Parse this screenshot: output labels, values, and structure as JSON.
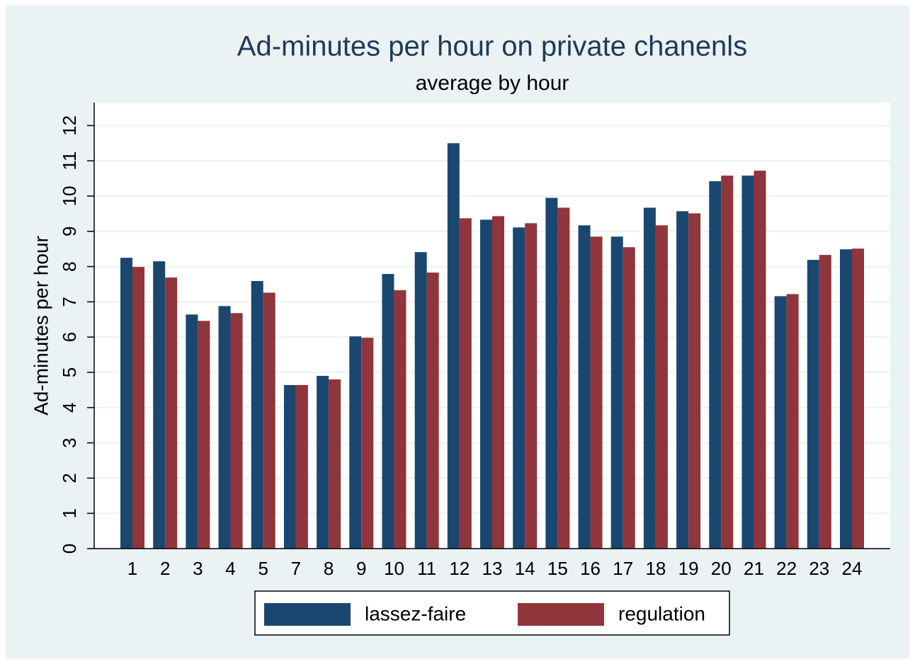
{
  "chart_data": {
    "type": "bar",
    "title": "Ad-minutes per hour on private chanenls",
    "subtitle": "average by hour",
    "y_label": "Ad-minutes per hour",
    "categories": [
      "1",
      "2",
      "3",
      "4",
      "5",
      "7",
      "8",
      "9",
      "10",
      "11",
      "12",
      "13",
      "14",
      "15",
      "16",
      "17",
      "18",
      "19",
      "20",
      "21",
      "22",
      "23",
      "24"
    ],
    "series": [
      {
        "name": "lassez-faire",
        "color": "#1a476f",
        "values": [
          8.25,
          8.15,
          6.64,
          6.88,
          7.59,
          4.64,
          4.9,
          6.02,
          7.79,
          8.41,
          11.5,
          9.33,
          9.11,
          9.95,
          9.17,
          8.85,
          9.67,
          9.57,
          10.42,
          10.58,
          7.16,
          8.19,
          8.49
        ]
      },
      {
        "name": "regulation",
        "color": "#90353b",
        "values": [
          7.99,
          7.69,
          6.46,
          6.68,
          7.26,
          4.64,
          4.8,
          5.98,
          7.33,
          7.83,
          9.37,
          9.43,
          9.23,
          9.67,
          8.85,
          8.55,
          9.17,
          9.51,
          10.58,
          10.72,
          7.22,
          8.33,
          8.51
        ]
      }
    ],
    "ylim": [
      0,
      12.65
    ],
    "yticks": [
      0,
      1,
      2,
      3,
      4,
      5,
      6,
      7,
      8,
      9,
      10,
      11,
      12
    ],
    "grid": true,
    "legend": "bottom"
  }
}
